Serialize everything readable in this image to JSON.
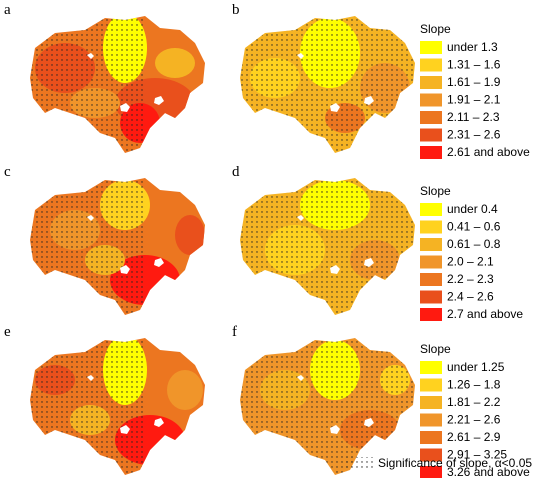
{
  "panels": [
    {
      "label": "a"
    },
    {
      "label": "b"
    },
    {
      "label": "c"
    },
    {
      "label": "d"
    },
    {
      "label": "e"
    },
    {
      "label": "f"
    }
  ],
  "legends": [
    {
      "title": "Slope",
      "items": [
        {
          "label": "under 1.3",
          "color": "#ffff00"
        },
        {
          "label": "1.31 – 1.6",
          "color": "#ffd21f"
        },
        {
          "label": "1.61 – 1.9",
          "color": "#f5b323"
        },
        {
          "label": "1.91 – 2.1",
          "color": "#f0952a"
        },
        {
          "label": "2.11 – 2.3",
          "color": "#ec7620"
        },
        {
          "label": "2.31 – 2.6",
          "color": "#e9501c"
        },
        {
          "label": "2.61 and above",
          "color": "#ff1a10"
        }
      ]
    },
    {
      "title": "Slope",
      "items": [
        {
          "label": "under 0.4",
          "color": "#ffff00"
        },
        {
          "label": "0.41 – 0.6",
          "color": "#ffd21f"
        },
        {
          "label": "0.61 – 0.8",
          "color": "#f5b323"
        },
        {
          "label": "2.0 – 2.1",
          "color": "#f0952a"
        },
        {
          "label": "2.2 – 2.3",
          "color": "#ec7620"
        },
        {
          "label": "2.4 – 2.6",
          "color": "#e9501c"
        },
        {
          "label": "2.7 and above",
          "color": "#ff1a10"
        }
      ]
    },
    {
      "title": "Slope",
      "items": [
        {
          "label": "under 1.25",
          "color": "#ffff00"
        },
        {
          "label": "1.26 – 1.8",
          "color": "#ffd21f"
        },
        {
          "label": "1.81 – 2.2",
          "color": "#f5b323"
        },
        {
          "label": "2.21 – 2.6",
          "color": "#f0952a"
        },
        {
          "label": "2.61 – 2.9",
          "color": "#ec7620"
        },
        {
          "label": "2.91 – 3.25",
          "color": "#e9501c"
        },
        {
          "label": "3.26 and above",
          "color": "#ff1a10"
        }
      ]
    }
  ],
  "footnote": "Significance of slope, α<0.05"
}
